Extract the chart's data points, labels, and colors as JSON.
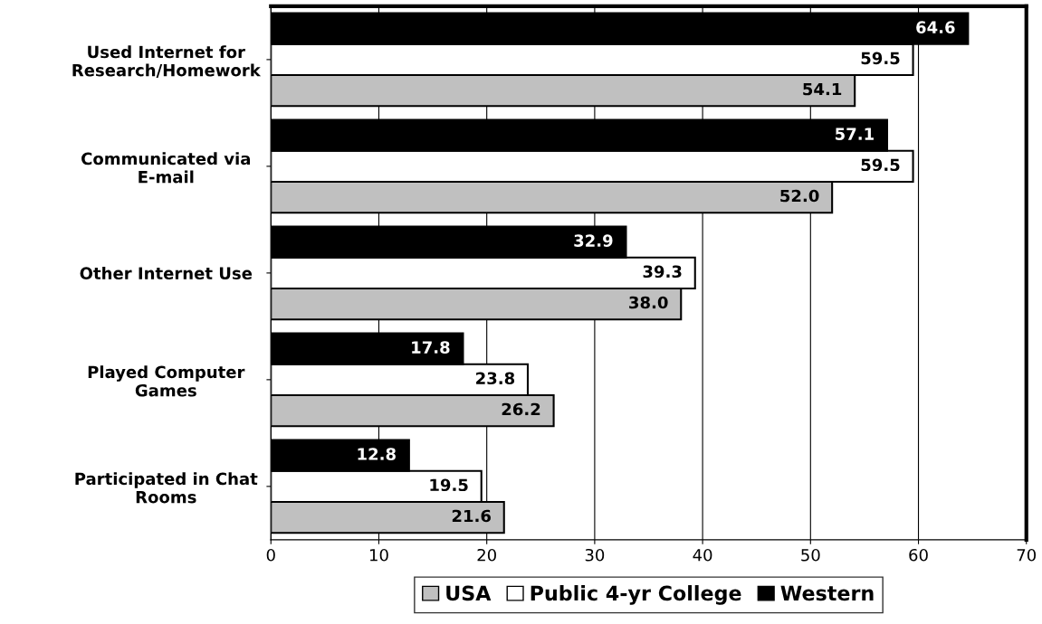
{
  "chart_data": {
    "type": "bar",
    "orientation": "horizontal",
    "categories": [
      "Used Internet for\nResearch/Homework",
      "Communicated via\nE-mail",
      "Other Internet Use",
      "Played Computer\nGames",
      "Participated in Chat\nRooms"
    ],
    "series": [
      {
        "name": "USA",
        "color": "#c0c0c0",
        "values": [
          54.1,
          52.0,
          38.0,
          26.2,
          21.6
        ],
        "value_labels": [
          "54.1",
          "52.0",
          "38.0",
          "26.2",
          "21.6"
        ]
      },
      {
        "name": "Public 4-yr College",
        "color": "#ffffff",
        "values": [
          59.5,
          59.5,
          39.3,
          23.8,
          19.5
        ],
        "value_labels": [
          "59.5",
          "59.5",
          "39.3",
          "23.8",
          "19.5"
        ]
      },
      {
        "name": "Western",
        "color": "#000000",
        "values": [
          64.6,
          57.1,
          32.9,
          17.8,
          12.8
        ],
        "value_labels": [
          "64.6",
          "57.1",
          "32.9",
          "17.8",
          "12.8"
        ]
      }
    ],
    "xlim": [
      0,
      70
    ],
    "xticks": [
      0,
      10,
      20,
      30,
      40,
      50,
      60,
      70
    ],
    "grid": "x",
    "legend": "bottom"
  }
}
